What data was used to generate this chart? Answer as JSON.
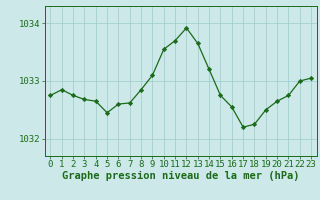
{
  "x": [
    0,
    1,
    2,
    3,
    4,
    5,
    6,
    7,
    8,
    9,
    10,
    11,
    12,
    13,
    14,
    15,
    16,
    17,
    18,
    19,
    20,
    21,
    22,
    23
  ],
  "y": [
    1032.75,
    1032.85,
    1032.75,
    1032.68,
    1032.65,
    1032.45,
    1032.6,
    1032.62,
    1032.85,
    1033.1,
    1033.55,
    1033.7,
    1033.92,
    1033.65,
    1033.2,
    1032.75,
    1032.55,
    1032.2,
    1032.25,
    1032.5,
    1032.65,
    1032.75,
    1033.0,
    1033.05
  ],
  "line_color": "#1a6b1a",
  "marker": "D",
  "marker_size": 2.2,
  "bg_color": "#cce8e8",
  "grid_color": "#99cccc",
  "ylabel_ticks": [
    1032,
    1033,
    1034
  ],
  "ytick_labels": [
    "1032",
    "1033",
    "1034"
  ],
  "ylim": [
    1031.7,
    1034.3
  ],
  "xlim": [
    -0.5,
    23.5
  ],
  "xlabel": "Graphe pression niveau de la mer (hPa)",
  "xlabel_fontsize": 7.5,
  "tick_fontsize": 6.5,
  "axis_color": "#1a6b1a",
  "linewidth": 0.9
}
